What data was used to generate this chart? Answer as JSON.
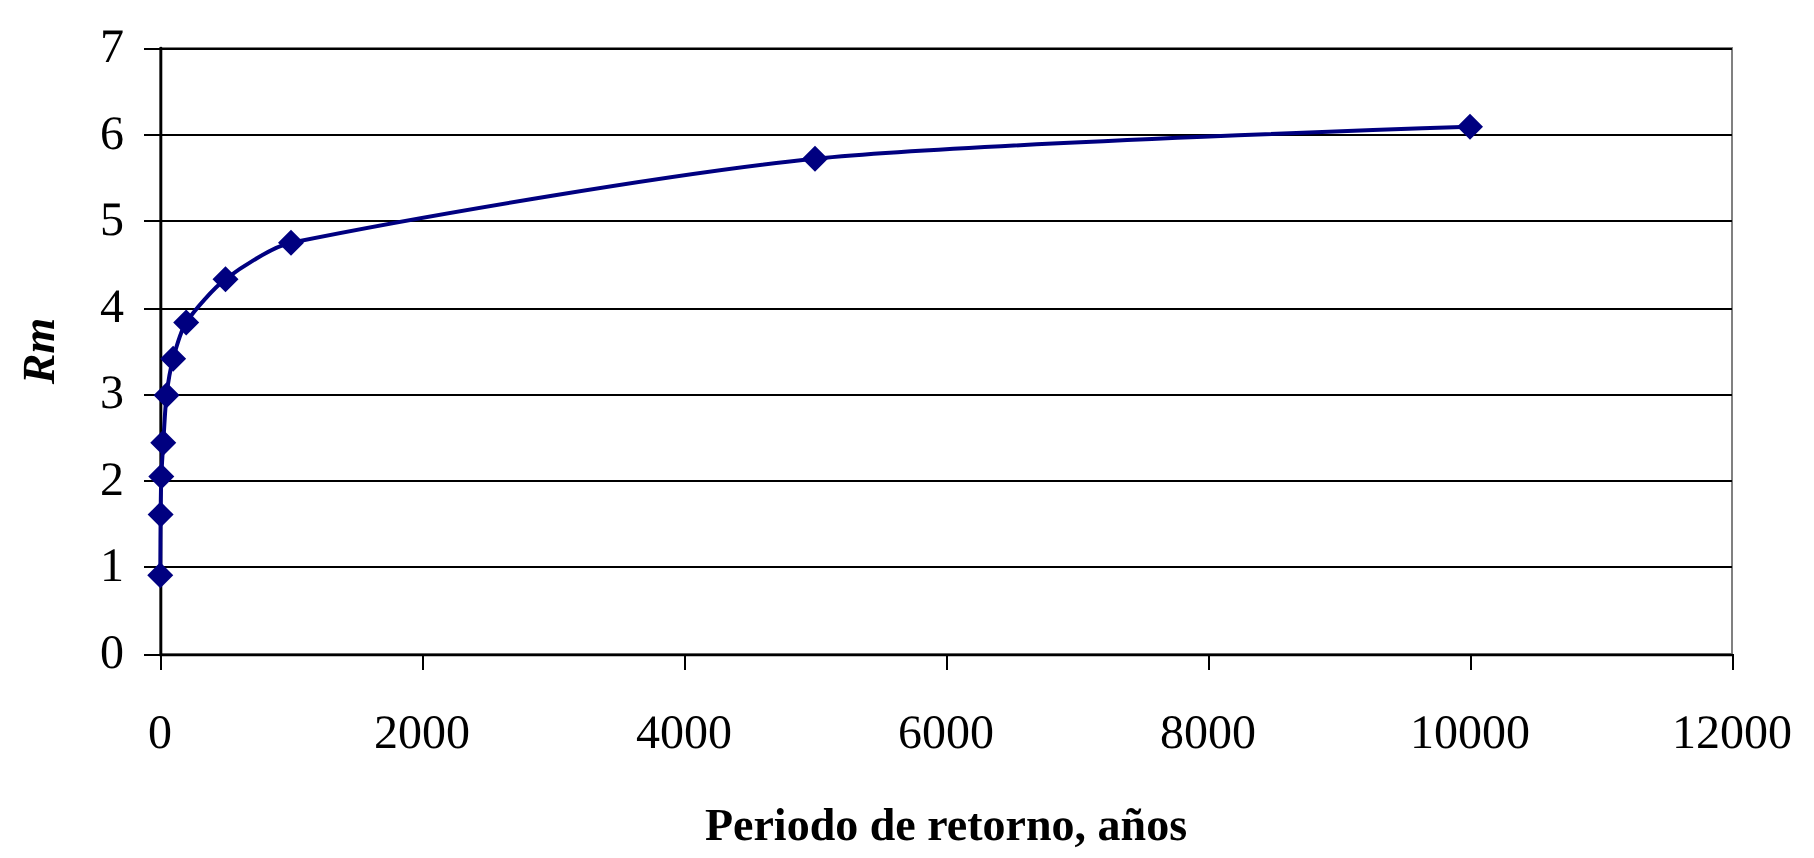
{
  "chart_data": {
    "type": "line",
    "xlabel": "Periodo de retorno, años",
    "ylabel": "Rm",
    "x": [
      2,
      5,
      10,
      25,
      50,
      100,
      200,
      500,
      1000,
      5000,
      10000
    ],
    "series": [
      {
        "color": "#000080",
        "values": [
          0.91,
          1.61,
          2.05,
          2.44,
          2.99,
          3.41,
          3.83,
          4.33,
          4.75,
          5.72,
          6.09
        ]
      }
    ],
    "xlim": [
      0,
      12000
    ],
    "xticks": [
      0,
      2000,
      4000,
      6000,
      8000,
      10000,
      12000
    ],
    "ylim": [
      0,
      7
    ],
    "yticks": [
      0,
      1,
      2,
      3,
      4,
      5,
      6,
      7
    ],
    "grid": "y",
    "marker": "diamond",
    "line_style": "solid"
  }
}
